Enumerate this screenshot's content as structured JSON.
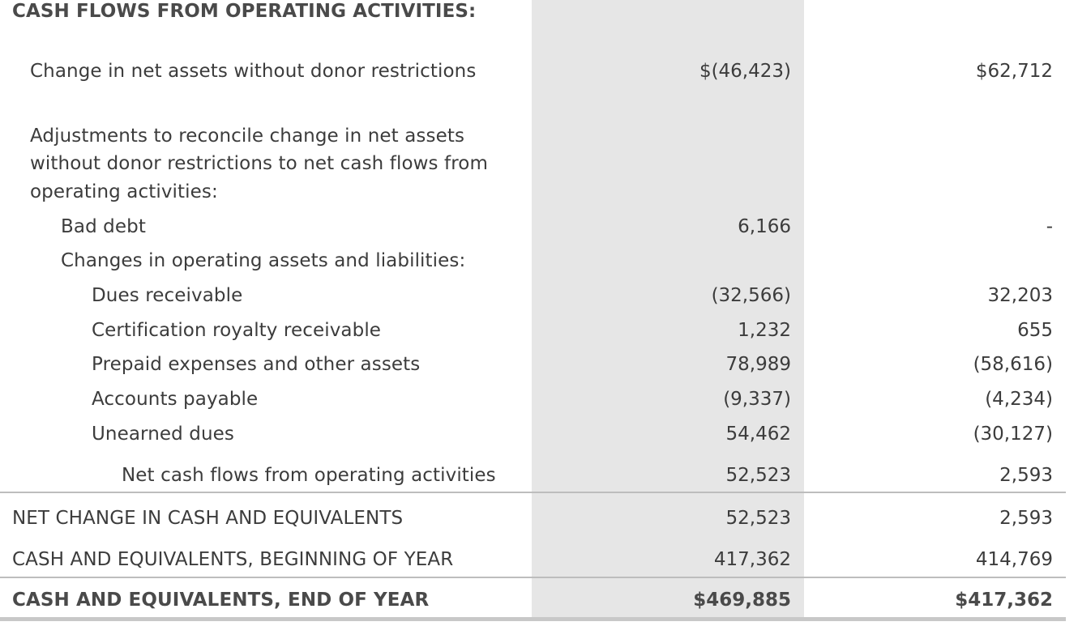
{
  "section_header": "CASH FLOWS FROM OPERATING ACTIVITIES:",
  "rows": {
    "change_net_assets": {
      "label": "Change in net assets without donor restrictions",
      "v1": "$(46,423)",
      "v2": "$62,712"
    },
    "adjustments": {
      "line1": "Adjustments to reconcile change in net assets",
      "line2": "without donor restrictions to net cash flows from",
      "line3": "operating activities:"
    },
    "bad_debt": {
      "label": "Bad debt",
      "v1": "6,166",
      "v2": "-"
    },
    "changes_header": {
      "label": "Changes in operating assets and liabilities:"
    },
    "dues_receivable": {
      "label": "Dues receivable",
      "v1": "(32,566)",
      "v2": "32,203"
    },
    "cert_royalty": {
      "label": "Certification royalty receivable",
      "v1": "1,232",
      "v2": "655"
    },
    "prepaid": {
      "label": "Prepaid expenses and other assets",
      "v1": "78,989",
      "v2": "(58,616)"
    },
    "accounts_payable": {
      "label": "Accounts payable",
      "v1": "(9,337)",
      "v2": "(4,234)"
    },
    "unearned_dues": {
      "label": "Unearned dues",
      "v1": "54,462",
      "v2": "(30,127)"
    },
    "net_cash_ops": {
      "label": "Net cash flows from operating activities",
      "v1": "52,523",
      "v2": "2,593"
    },
    "net_change": {
      "label": "NET CHANGE IN CASH AND EQUIVALENTS",
      "v1": "52,523",
      "v2": "2,593"
    },
    "beginning": {
      "label": "CASH AND EQUIVALENTS, BEGINNING OF YEAR",
      "v1": "417,362",
      "v2": "414,769"
    },
    "end_of_year": {
      "label": "CASH AND EQUIVALENTS, END OF YEAR",
      "v1": "$469,885",
      "v2": "$417,362"
    }
  }
}
